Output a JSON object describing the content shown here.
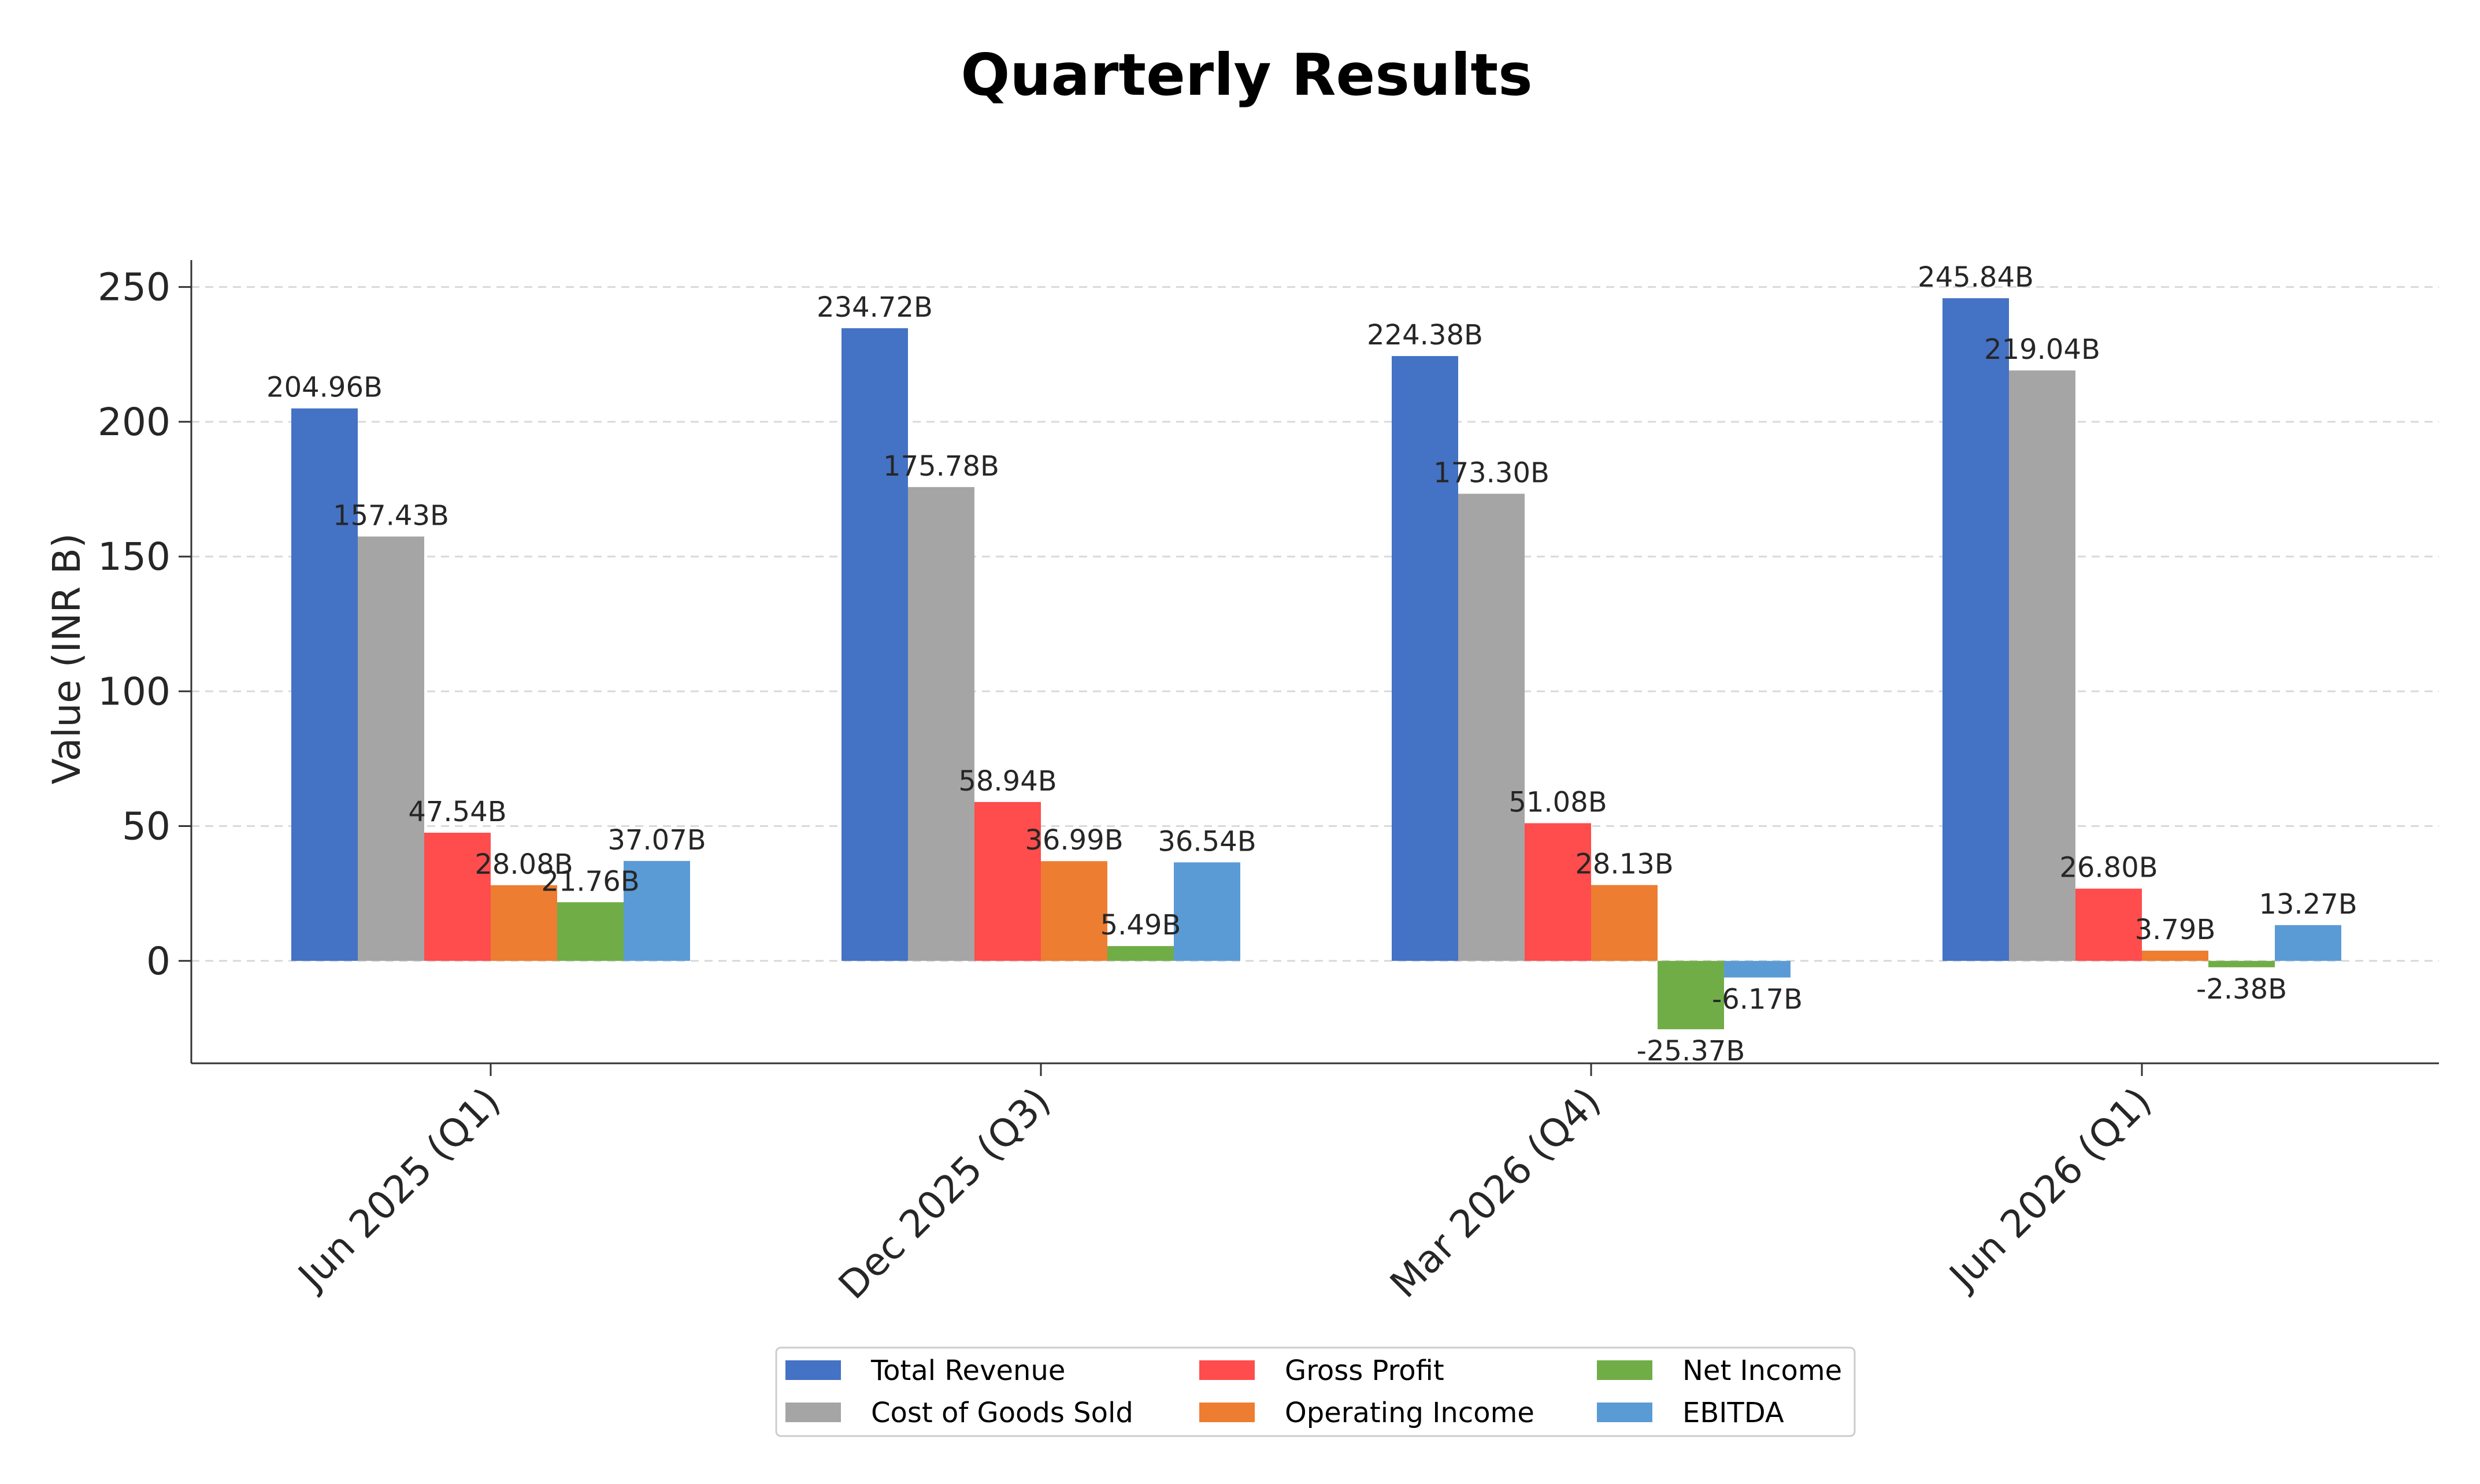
{
  "chart_data": {
    "type": "bar",
    "title": "Quarterly Results",
    "xlabel": "",
    "ylabel": "Value (INR B)",
    "ylim": [
      -38,
      260
    ],
    "yticks": [
      0,
      50,
      100,
      150,
      200,
      250
    ],
    "grid": "y-dashed",
    "legend_position": "bottom-center",
    "categories": [
      "Jun 2025 (Q1)",
      "Dec 2025 (Q3)",
      "Mar 2026 (Q4)",
      "Jun 2026 (Q1)"
    ],
    "series": [
      {
        "name": "Total Revenue",
        "color": "#4472C4",
        "values": [
          204.96,
          234.72,
          224.38,
          245.84
        ],
        "labels": [
          "204.96B",
          "234.72B",
          "224.38B",
          "245.84B"
        ]
      },
      {
        "name": "Cost of Goods Sold",
        "color": "#A5A5A5",
        "values": [
          157.43,
          175.78,
          173.3,
          219.04
        ],
        "labels": [
          "157.43B",
          "175.78B",
          "173.30B",
          "219.04B"
        ]
      },
      {
        "name": "Gross Profit",
        "color": "#FF4C4C",
        "values": [
          47.54,
          58.94,
          51.08,
          26.8
        ],
        "labels": [
          "47.54B",
          "58.94B",
          "51.08B",
          "26.80B"
        ]
      },
      {
        "name": "Operating Income",
        "color": "#ED7D31",
        "values": [
          28.08,
          36.99,
          28.13,
          3.79
        ],
        "labels": [
          "28.08B",
          "36.99B",
          "28.13B",
          "3.79B"
        ]
      },
      {
        "name": "Net Income",
        "color": "#70AD47",
        "values": [
          21.76,
          5.49,
          -25.37,
          -2.38
        ],
        "labels": [
          "21.76B",
          "5.49B",
          "-25.37B",
          "-2.38B"
        ]
      },
      {
        "name": "EBITDA",
        "color": "#5B9BD5",
        "values": [
          37.07,
          36.54,
          -6.17,
          13.27
        ],
        "labels": [
          "37.07B",
          "36.54B",
          "-6.17B",
          "13.27B"
        ]
      }
    ]
  }
}
